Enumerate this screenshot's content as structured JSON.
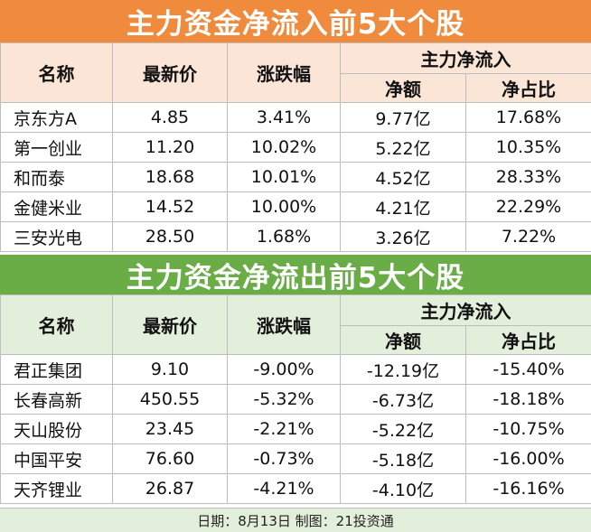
{
  "inflow": {
    "title": "主力资金净流入前5大个股",
    "headers": {
      "name": "名称",
      "price": "最新价",
      "change": "涨跌幅",
      "flow": "主力净流入",
      "amount": "净额",
      "ratio": "净占比"
    },
    "rows": [
      {
        "name": "京东方A",
        "price": "4.85",
        "change": "3.41%",
        "amount": "9.77亿",
        "ratio": "17.68%"
      },
      {
        "name": "第一创业",
        "price": "11.20",
        "change": "10.02%",
        "amount": "5.22亿",
        "ratio": "10.35%"
      },
      {
        "name": "和而泰",
        "price": "18.68",
        "change": "10.01%",
        "amount": "4.52亿",
        "ratio": "28.33%"
      },
      {
        "name": "金健米业",
        "price": "14.52",
        "change": "10.00%",
        "amount": "4.21亿",
        "ratio": "22.29%"
      },
      {
        "name": "三安光电",
        "price": "28.50",
        "change": "1.68%",
        "amount": "3.26亿",
        "ratio": "7.22%"
      }
    ]
  },
  "outflow": {
    "title": "主力资金净流出前5大个股",
    "headers": {
      "name": "名称",
      "price": "最新价",
      "change": "涨跌幅",
      "flow": "主力净流入",
      "amount": "净额",
      "ratio": "净占比"
    },
    "rows": [
      {
        "name": "君正集团",
        "price": "9.10",
        "change": "-9.00%",
        "amount": "-12.19亿",
        "ratio": "-15.40%"
      },
      {
        "name": "长春高新",
        "price": "450.55",
        "change": "-5.32%",
        "amount": "-6.73亿",
        "ratio": "-18.18%"
      },
      {
        "name": "天山股份",
        "price": "23.45",
        "change": "-2.21%",
        "amount": "-5.22亿",
        "ratio": "-10.75%"
      },
      {
        "name": "中国平安",
        "price": "76.60",
        "change": "-0.73%",
        "amount": "-5.18亿",
        "ratio": "-16.00%"
      },
      {
        "name": "天齐锂业",
        "price": "26.87",
        "change": "-4.21%",
        "amount": "-4.10亿",
        "ratio": "-16.16%"
      }
    ]
  },
  "footer": {
    "text": "日期：8月13日 制图：21投资通"
  },
  "colors": {
    "inflow_banner": "#f08a3c",
    "inflow_header": "#fbe5d6",
    "outflow_banner": "#6aad47",
    "outflow_header": "#e2efda"
  }
}
